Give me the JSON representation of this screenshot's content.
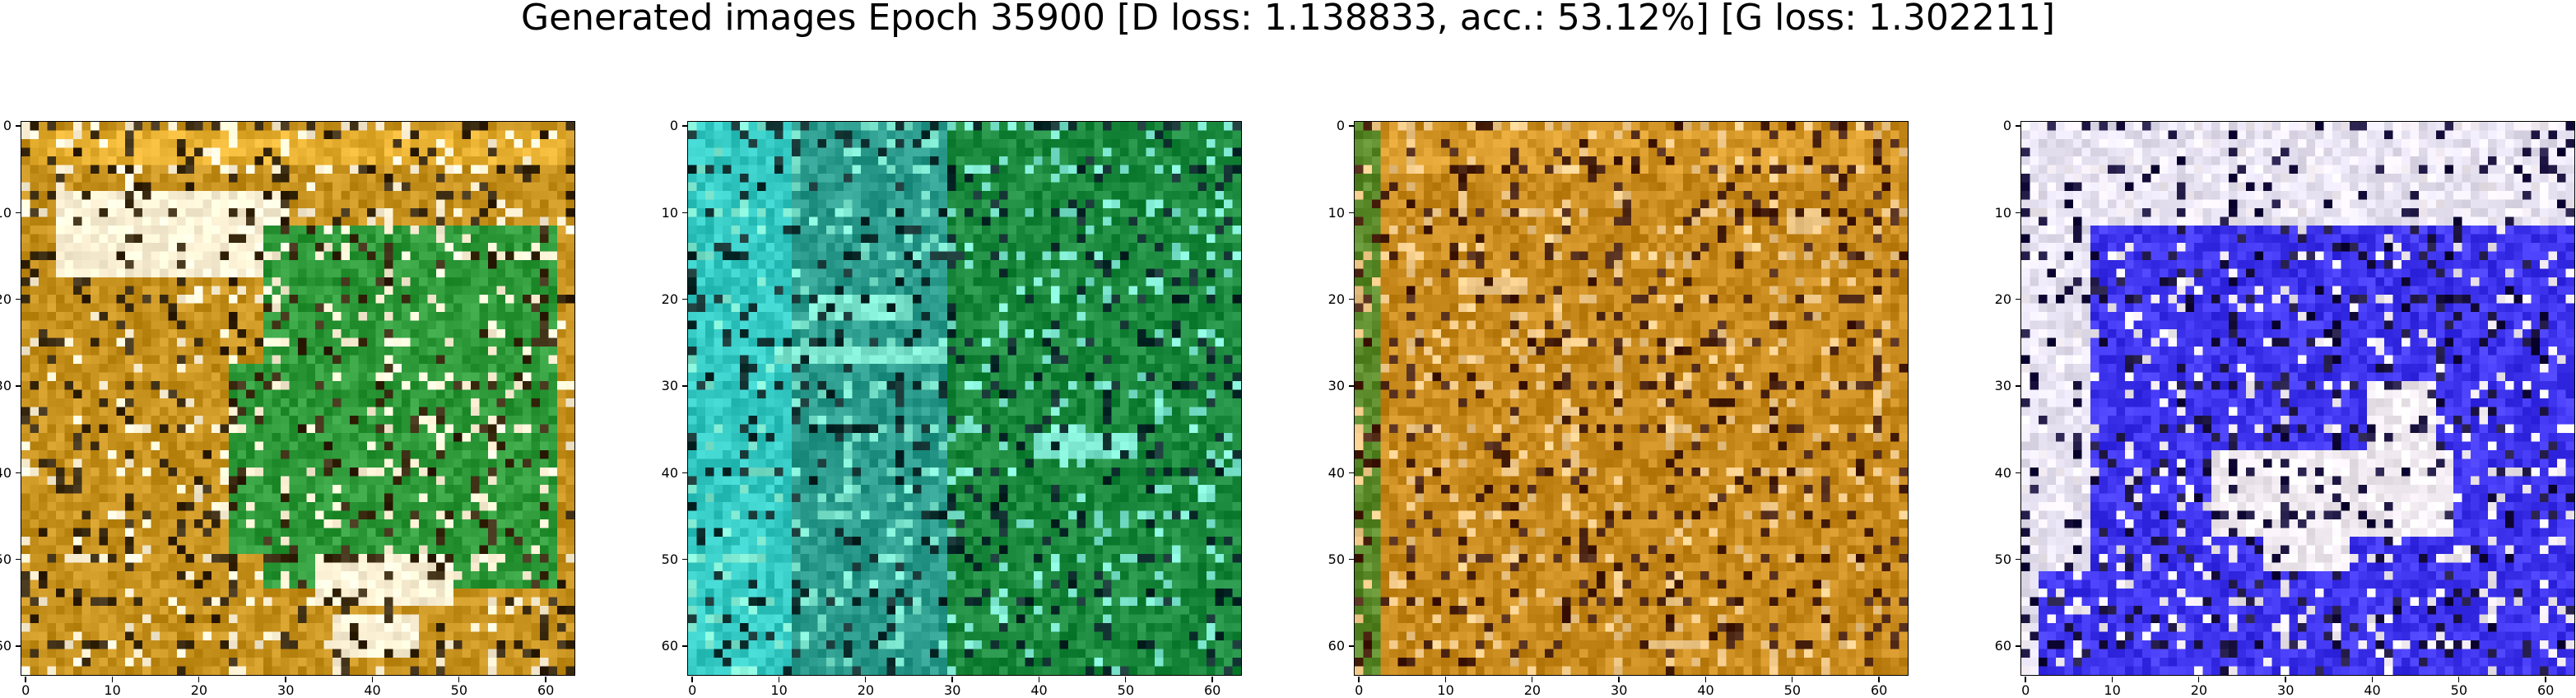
{
  "figure": {
    "title": "Generated images Epoch 35900 [D loss: 1.138833, acc.: 53.12%] [G loss: 1.302211]"
  },
  "axes": {
    "x_ticks": [
      "0",
      "10",
      "20",
      "30",
      "40",
      "50",
      "60"
    ],
    "y_ticks": [
      "0",
      "10",
      "20",
      "30",
      "40",
      "50",
      "60"
    ],
    "range": [
      0,
      64
    ]
  },
  "panels": [
    {
      "id": "panel-1",
      "description_colors": {
        "base": "#c8921f",
        "frame": "#e8b030",
        "accent": "#2e9a3a",
        "light": "#fff4d8",
        "dark": "#3a2a10"
      },
      "regions": [
        {
          "x": 0,
          "y": 0,
          "w": 64,
          "h": 64,
          "c": "base"
        },
        {
          "x": 1,
          "y": 1,
          "w": 62,
          "h": 4,
          "c": "frame"
        },
        {
          "x": 4,
          "y": 8,
          "w": 26,
          "h": 10,
          "c": "light"
        },
        {
          "x": 10,
          "y": 10,
          "w": 16,
          "h": 4,
          "c": "light"
        },
        {
          "x": 28,
          "y": 12,
          "w": 34,
          "h": 42,
          "c": "accent"
        },
        {
          "x": 24,
          "y": 28,
          "w": 10,
          "h": 22,
          "c": "accent"
        },
        {
          "x": 34,
          "y": 50,
          "w": 16,
          "h": 6,
          "c": "light"
        },
        {
          "x": 36,
          "y": 57,
          "w": 10,
          "h": 5,
          "c": "light"
        }
      ]
    },
    {
      "id": "panel-2",
      "description_colors": {
        "base": "#2a9a8c",
        "frame": "#1b8a3e",
        "accent": "#35c9c4",
        "light": "#7ee8d0",
        "dark": "#0e2e2e"
      },
      "regions": [
        {
          "x": 0,
          "y": 0,
          "w": 64,
          "h": 64,
          "c": "base"
        },
        {
          "x": 30,
          "y": 0,
          "w": 34,
          "h": 64,
          "c": "frame"
        },
        {
          "x": 0,
          "y": 0,
          "w": 12,
          "h": 64,
          "c": "accent"
        },
        {
          "x": 14,
          "y": 20,
          "w": 12,
          "h": 3,
          "c": "light"
        },
        {
          "x": 10,
          "y": 26,
          "w": 20,
          "h": 2,
          "c": "light"
        },
        {
          "x": 40,
          "y": 36,
          "w": 12,
          "h": 3,
          "c": "light"
        }
      ]
    },
    {
      "id": "panel-3",
      "description_colors": {
        "base": "#c88a1c",
        "frame": "#d89a2a",
        "accent": "#5a8a2a",
        "light": "#f0c888",
        "dark": "#4a2210"
      },
      "regions": [
        {
          "x": 0,
          "y": 0,
          "w": 64,
          "h": 64,
          "c": "base"
        },
        {
          "x": 0,
          "y": 0,
          "w": 3,
          "h": 64,
          "c": "accent"
        },
        {
          "x": 3,
          "y": 1,
          "w": 60,
          "h": 5,
          "c": "frame"
        },
        {
          "x": 50,
          "y": 10,
          "w": 4,
          "h": 3,
          "c": "light"
        },
        {
          "x": 12,
          "y": 18,
          "w": 8,
          "h": 2,
          "c": "light"
        }
      ]
    },
    {
      "id": "panel-4",
      "description_colors": {
        "base": "#3f35ee",
        "frame": "#e8e4f4",
        "accent": "#4a42f0",
        "light": "#f4eef4",
        "dark": "#1c1440"
      },
      "regions": [
        {
          "x": 0,
          "y": 0,
          "w": 64,
          "h": 64,
          "c": "frame"
        },
        {
          "x": 8,
          "y": 12,
          "w": 56,
          "h": 52,
          "c": "base"
        },
        {
          "x": 2,
          "y": 52,
          "w": 60,
          "h": 12,
          "c": "base"
        },
        {
          "x": 22,
          "y": 38,
          "w": 28,
          "h": 10,
          "c": "light"
        },
        {
          "x": 28,
          "y": 44,
          "w": 10,
          "h": 8,
          "c": "light"
        },
        {
          "x": 40,
          "y": 30,
          "w": 8,
          "h": 10,
          "c": "light"
        }
      ]
    }
  ]
}
